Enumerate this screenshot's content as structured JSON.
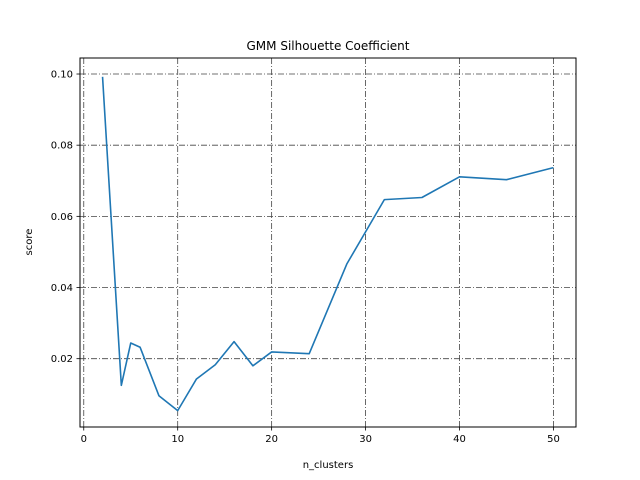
{
  "chart_data": {
    "type": "line",
    "title": "GMM Silhouette Coefficient",
    "xlabel": "n_clusters",
    "ylabel": "score",
    "xlim": [
      -0.4,
      52.4
    ],
    "ylim": [
      0.0008,
      0.1045
    ],
    "xticks": [
      0,
      10,
      20,
      30,
      40,
      50
    ],
    "yticks": [
      0.02,
      0.04,
      0.06,
      0.08,
      0.1
    ],
    "ytick_labels": [
      "0.02",
      "0.04",
      "0.06",
      "0.08",
      "0.10"
    ],
    "grid": true,
    "grid_style": "dashdot",
    "line_color": "#1f77b4",
    "series": [
      {
        "x": [
          2,
          4,
          5,
          6,
          8,
          10,
          12,
          14,
          16,
          18,
          20,
          24,
          28,
          32,
          36,
          40,
          45,
          50
        ],
        "y": [
          0.0992,
          0.0125,
          0.0244,
          0.0232,
          0.0096,
          0.0054,
          0.0143,
          0.0183,
          0.0248,
          0.018,
          0.0219,
          0.0214,
          0.0466,
          0.0647,
          0.0653,
          0.0711,
          0.0703,
          0.0737
        ]
      }
    ]
  }
}
